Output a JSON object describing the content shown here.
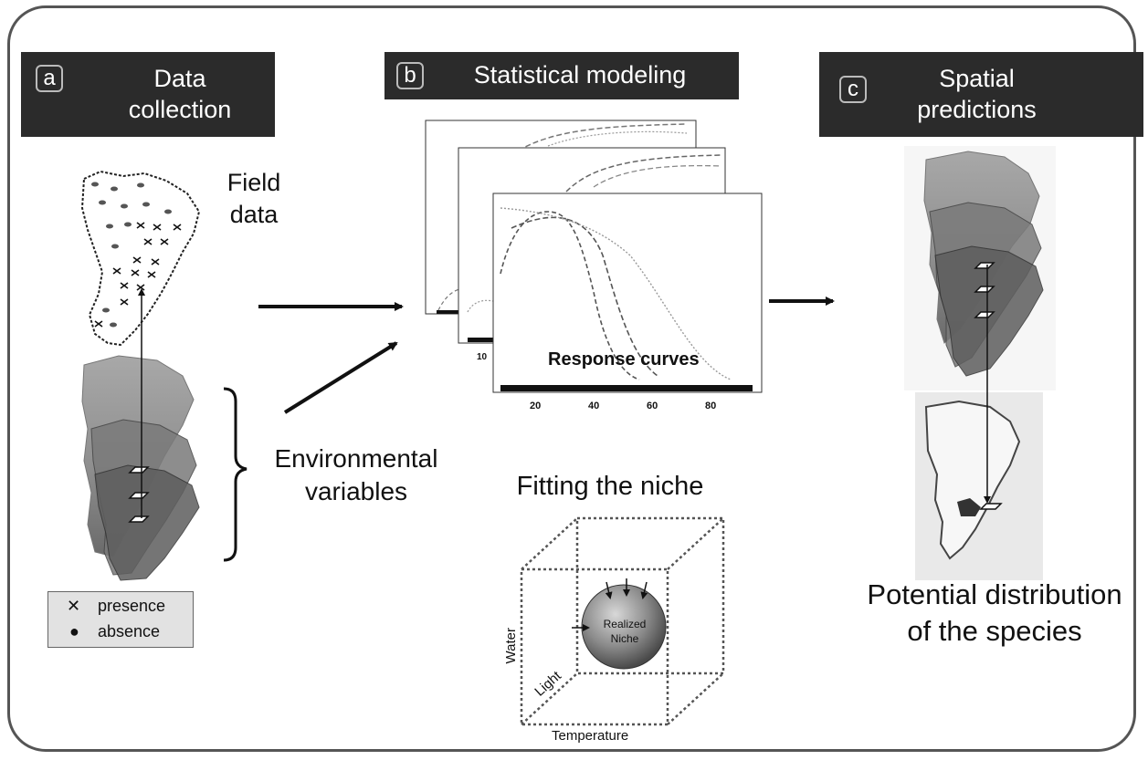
{
  "panel_a": {
    "badge": "a",
    "title": "Data collection",
    "field_data": "Field data",
    "env_variables": "Environmental variables",
    "legend": {
      "presence": "presence",
      "absence": "absence"
    }
  },
  "panel_b": {
    "badge": "b",
    "title": "Statistical modeling",
    "response_curves": "Response curves",
    "x_ticks": [
      "20",
      "40",
      "60",
      "80"
    ],
    "back_tick": "10",
    "fitting": "Fitting the niche",
    "niche": {
      "label_line1": "Realized",
      "label_line2": "Niche",
      "axis_water": "Water",
      "axis_light": "Light",
      "axis_temperature": "Temperature"
    }
  },
  "panel_c": {
    "badge": "c",
    "title": "Spatial predictions",
    "potential": "Potential distribution of the species"
  },
  "icons": {
    "presence": "cross-icon",
    "absence": "dot-icon",
    "arrow": "arrow-right-icon"
  },
  "colors": {
    "header_bg": "#2b2b2b",
    "frame": "#555555",
    "legend_bg": "#e2e2e2"
  }
}
